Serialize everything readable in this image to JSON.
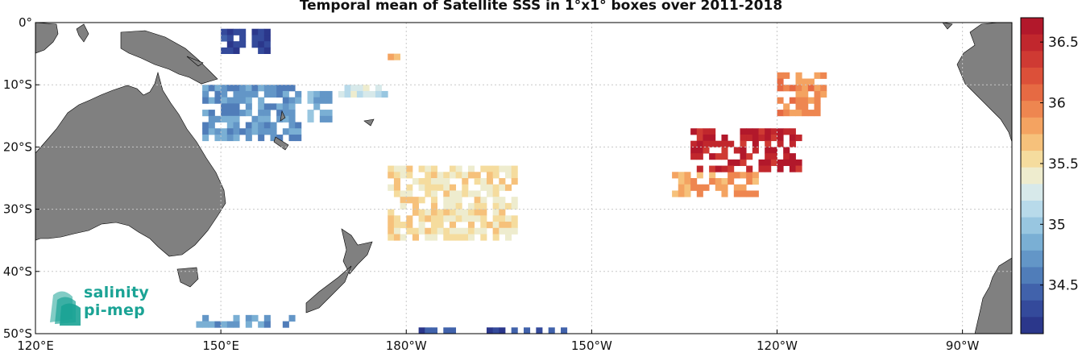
{
  "title": "Temporal mean of Satellite SSS in 1°x1° boxes over 2011-2018",
  "map": {
    "lon_range": [
      120,
      278
    ],
    "lat_range": [
      -50,
      0
    ],
    "x_ticks": [
      {
        "lon": 120,
        "label": "120°E"
      },
      {
        "lon": 150,
        "label": "150°E"
      },
      {
        "lon": 180,
        "label": "180°W"
      },
      {
        "lon": 210,
        "label": "150°W"
      },
      {
        "lon": 240,
        "label": "120°W"
      },
      {
        "lon": 270,
        "label": "90°W"
      }
    ],
    "y_ticks": [
      {
        "lat": 0,
        "label": "0°"
      },
      {
        "lat": -10,
        "label": "10°S"
      },
      {
        "lat": -20,
        "label": "20°S"
      },
      {
        "lat": -30,
        "label": "30°S"
      },
      {
        "lat": -40,
        "label": "40°S"
      },
      {
        "lat": -50,
        "label": "50°S"
      }
    ],
    "grid": true,
    "land_color": "#808080",
    "gridline_color": "#c8c8c8"
  },
  "colorbar": {
    "range": [
      34.1,
      36.7
    ],
    "tick_labels": [
      "36.5",
      "36",
      "35.5",
      "35",
      "34.5"
    ],
    "tick_values": [
      36.5,
      36,
      35.5,
      35,
      34.5
    ],
    "colors": [
      "#b2182b",
      "#c1272d",
      "#cf3a33",
      "#dc5039",
      "#e66a43",
      "#ee8650",
      "#f4a361",
      "#f6c17b",
      "#f5dc9e",
      "#eeecce",
      "#d7e9ea",
      "#b8daea",
      "#98c6e0",
      "#7aafd4",
      "#6396c7",
      "#507db9",
      "#4162ab",
      "#344a9b",
      "#2b378b"
    ]
  },
  "logo": {
    "line1": "salinity",
    "line2": "pi-mep"
  },
  "chart_data": {
    "type": "heatmap",
    "title": "Temporal mean of Satellite SSS in 1°x1° boxes over 2011-2018",
    "variable": "SSS",
    "x_axis": "longitude",
    "y_axis": "latitude",
    "colorbar_range": [
      34.1,
      36.7
    ],
    "regions": [
      {
        "lon": [
          150,
          158
        ],
        "lat": [
          -5,
          -1
        ],
        "sss": 34.2
      },
      {
        "lon": [
          147,
          163
        ],
        "lat": [
          -19,
          -10
        ],
        "sss": 34.7
      },
      {
        "lon": [
          164,
          168
        ],
        "lat": [
          -16,
          -11
        ],
        "sss": 34.8
      },
      {
        "lon": [
          169,
          177
        ],
        "lat": [
          -12,
          -10
        ],
        "sss": 35.2
      },
      {
        "lon": [
          177,
          180
        ],
        "lat": [
          -6,
          -5
        ],
        "sss": 35.7
      },
      {
        "lon": [
          146,
          162
        ],
        "lat": [
          -49,
          -47
        ],
        "sss": 34.7
      },
      {
        "lon": [
          177,
          198
        ],
        "lat": [
          -35,
          -23
        ],
        "sss": 35.5
      },
      {
        "lon": [
          223,
          237
        ],
        "lat": [
          -28,
          -24
        ],
        "sss": 35.8
      },
      {
        "lon": [
          226,
          244
        ],
        "lat": [
          -24,
          -17
        ],
        "sss": 36.5
      },
      {
        "lon": [
          240,
          248
        ],
        "lat": [
          -15,
          -8
        ],
        "sss": 35.9
      },
      {
        "lon": [
          182,
          206
        ],
        "lat": [
          -50,
          -49
        ],
        "sss": 34.3
      }
    ]
  }
}
